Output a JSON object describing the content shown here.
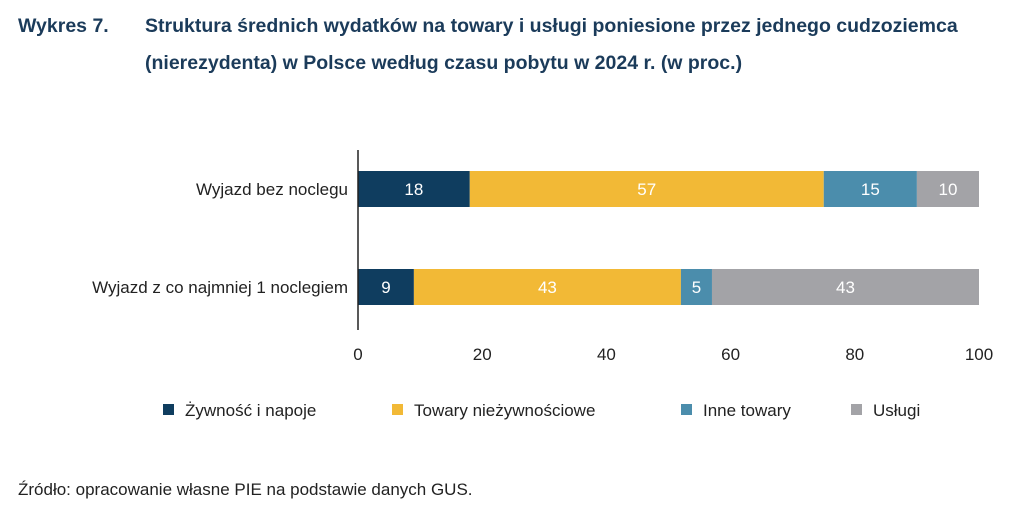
{
  "header": {
    "number": "Wykres 7.",
    "title": "Struktura średnich wydatków na towary i usługi poniesione przez jednego cudzoziemca (nierezydenta) w Polsce według czasu pobytu w 2024 r. (w proc.)"
  },
  "chart_data": {
    "type": "bar",
    "orientation": "horizontal",
    "stacked": true,
    "title": "Struktura średnich wydatków na towary i usługi poniesione przez jednego cudzoziemca (nierezydenta) w Polsce według czasu pobytu w 2024 r. (w proc.)",
    "categories": [
      "Wyjazd bez noclegu",
      "Wyjazd z co najmniej 1 noclegiem"
    ],
    "series": [
      {
        "name": "Żywność i napoje",
        "color": "#0f3d5f",
        "values": [
          18,
          9
        ]
      },
      {
        "name": "Towary nieżywnościowe",
        "color": "#f2b936",
        "values": [
          57,
          43
        ]
      },
      {
        "name": "Inne towary",
        "color": "#4b8dac",
        "values": [
          15,
          5
        ]
      },
      {
        "name": "Usługi",
        "color": "#a3a3a7",
        "values": [
          10,
          43
        ]
      }
    ],
    "xlim": [
      0,
      100
    ],
    "xticks": [
      "0",
      "20",
      "40",
      "60",
      "80",
      "100"
    ],
    "legend": "bottom",
    "grid": false
  },
  "source": "Źródło: opracowanie własne PIE na podstawie danych GUS."
}
